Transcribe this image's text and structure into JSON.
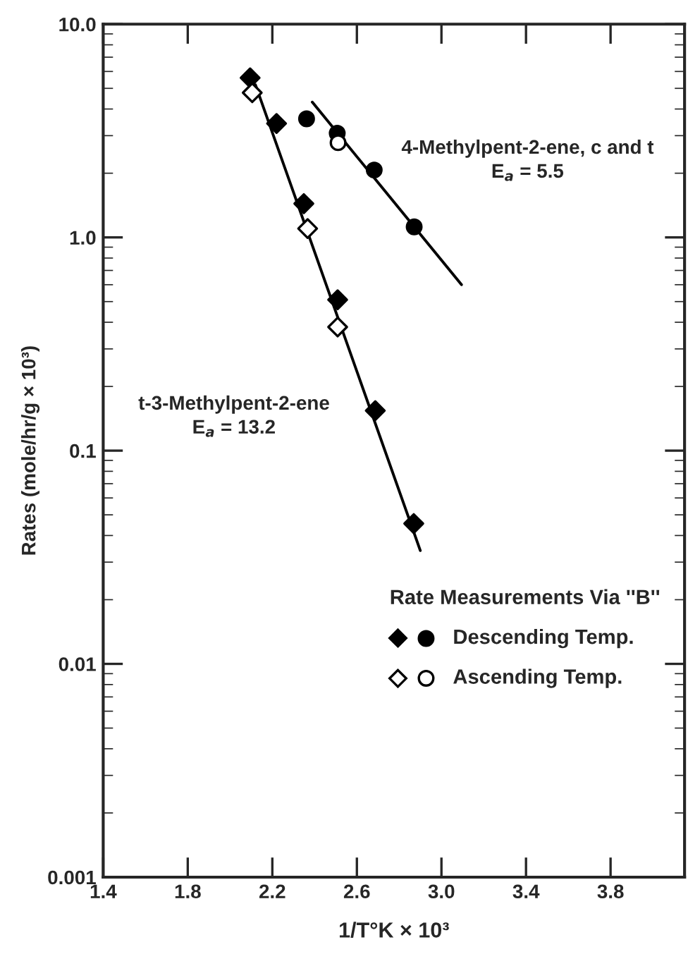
{
  "chart_data": {
    "type": "scatter",
    "xlabel": "1/T°K × 10³",
    "ylabel": "Rates (mole/hr/g × 10³)",
    "legend_title": "Rate Measurements Via ''B''",
    "log": "y",
    "grid": false,
    "legend": "lower right",
    "xlim": [
      1.4,
      4.15
    ],
    "xticks": [
      1.4,
      1.8,
      2.2,
      2.6,
      {
        "value": 3,
        "label": "3.0"
      },
      3.4,
      3.8
    ],
    "ylim": [
      0.001,
      10
    ],
    "yticks": [
      {
        "value": 0.001,
        "label": "0.001"
      },
      {
        "value": 0.01,
        "label": "0.01"
      },
      {
        "value": 0.1,
        "label": "0.1"
      },
      {
        "value": 1,
        "label": "1.0"
      },
      {
        "value": 10,
        "label": "10.0"
      }
    ],
    "series": [
      {
        "marker": "diamond",
        "color": "#000000",
        "x": [
          2.095,
          2.22,
          2.349,
          2.509,
          2.687,
          2.869
        ],
        "values": [
          5.6,
          3.42,
          1.44,
          0.51,
          0.154,
          0.0455
        ]
      },
      {
        "marker": "diamond",
        "color": "#ffffff",
        "x": [
          2.105,
          2.367,
          2.509
        ],
        "values": [
          4.77,
          1.1,
          0.38
        ]
      },
      {
        "name": "Descending Temp.",
        "marker": "circle",
        "color": "#000000",
        "x": [
          2.362,
          2.507,
          2.682,
          2.871
        ],
        "values": [
          3.6,
          3.08,
          2.07,
          1.12
        ]
      },
      {
        "name": "Ascending Temp.",
        "marker": "circle",
        "color": "#ffffff",
        "x": [
          2.511
        ],
        "values": [
          2.78
        ]
      },
      {
        "type": "line",
        "marker": "none",
        "line_style": "solid",
        "color": "#000000",
        "x": [
          2.12,
          2.9
        ],
        "values": [
          5.2,
          0.034
        ]
      },
      {
        "type": "line",
        "marker": "none",
        "line_style": "solid",
        "color": "#000000",
        "x": [
          2.389,
          3.095
        ],
        "values": [
          4.31,
          0.6
        ]
      }
    ],
    "annotations": [
      "t-3-Methylpent-2-ene\nE$_{a}$ = 13.2",
      "4-Methylpent-2-ene, c and t\nE$_{a}$ = 5.5"
    ]
  }
}
